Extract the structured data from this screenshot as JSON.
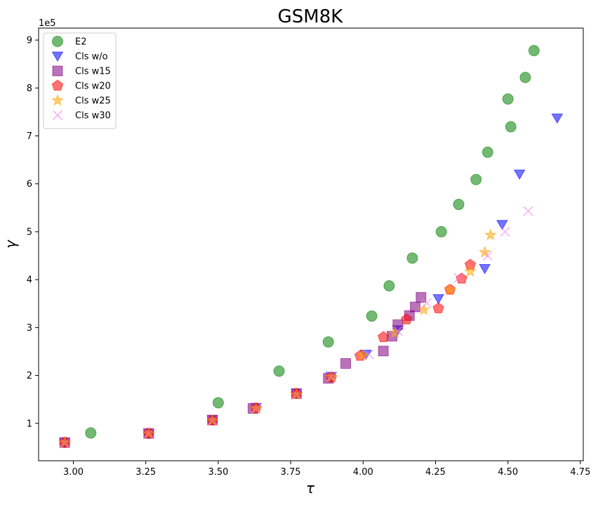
{
  "chart_data": {
    "type": "scatter",
    "title": "GSM8K",
    "xlabel": "τ",
    "ylabel": "γ",
    "y_offset_text": "1e5",
    "xlim": [
      2.88,
      4.76
    ],
    "ylim": [
      0.22,
      9.25
    ],
    "x_ticks": [
      3.0,
      3.25,
      3.5,
      3.75,
      4.0,
      4.25,
      4.5,
      4.75
    ],
    "x_tick_labels": [
      "3.00",
      "3.25",
      "3.50",
      "3.75",
      "4.00",
      "4.25",
      "4.50",
      "4.75"
    ],
    "y_ticks": [
      1,
      2,
      3,
      4,
      5,
      6,
      7,
      8,
      9
    ],
    "y_tick_labels": [
      "1",
      "2",
      "3",
      "4",
      "5",
      "6",
      "7",
      "8",
      "9"
    ],
    "grid": false,
    "legend_position": "top-left",
    "series": [
      {
        "name": "E2",
        "marker": "circle",
        "color": "#008000",
        "points": [
          [
            3.06,
            0.8
          ],
          [
            3.5,
            1.43
          ],
          [
            3.71,
            2.09
          ],
          [
            3.88,
            2.7
          ],
          [
            4.03,
            3.24
          ],
          [
            4.09,
            3.87
          ],
          [
            4.17,
            4.45
          ],
          [
            4.27,
            5.0
          ],
          [
            4.33,
            5.57
          ],
          [
            4.39,
            6.09
          ],
          [
            4.43,
            6.66
          ],
          [
            4.5,
            7.77
          ],
          [
            4.51,
            7.19
          ],
          [
            4.56,
            8.22
          ],
          [
            4.59,
            8.78
          ]
        ]
      },
      {
        "name": "Cls w/o",
        "marker": "triangle-down",
        "color": "#0000ff",
        "points": [
          [
            2.97,
            0.6
          ],
          [
            3.26,
            0.79
          ],
          [
            3.48,
            1.07
          ],
          [
            3.63,
            1.33
          ],
          [
            3.77,
            1.63
          ],
          [
            3.89,
            1.98
          ],
          [
            4.01,
            2.44
          ],
          [
            4.12,
            2.95
          ],
          [
            4.26,
            3.6
          ],
          [
            4.42,
            4.23
          ],
          [
            4.48,
            5.15
          ],
          [
            4.54,
            6.2
          ],
          [
            4.67,
            7.37
          ]
        ]
      },
      {
        "name": "Cls w15",
        "marker": "square",
        "color": "#800080",
        "points": [
          [
            2.97,
            0.6
          ],
          [
            3.26,
            0.79
          ],
          [
            3.48,
            1.07
          ],
          [
            3.62,
            1.31
          ],
          [
            3.77,
            1.62
          ],
          [
            3.88,
            1.94
          ],
          [
            3.94,
            2.25
          ],
          [
            4.07,
            2.51
          ],
          [
            4.1,
            2.82
          ],
          [
            4.12,
            3.06
          ],
          [
            4.16,
            3.25
          ],
          [
            4.18,
            3.43
          ],
          [
            4.2,
            3.63
          ]
        ]
      },
      {
        "name": "Cls w20",
        "marker": "pentagon",
        "color": "#ff0000",
        "points": [
          [
            2.97,
            0.6
          ],
          [
            3.26,
            0.79
          ],
          [
            3.48,
            1.06
          ],
          [
            3.63,
            1.32
          ],
          [
            3.77,
            1.62
          ],
          [
            3.89,
            1.96
          ],
          [
            3.99,
            2.41
          ],
          [
            4.07,
            2.8
          ],
          [
            4.15,
            3.17
          ],
          [
            4.26,
            3.4
          ],
          [
            4.3,
            3.79
          ],
          [
            4.34,
            4.02
          ],
          [
            4.37,
            4.31
          ]
        ]
      },
      {
        "name": "Cls w25",
        "marker": "star",
        "color": "#ffa500",
        "points": [
          [
            2.97,
            0.6
          ],
          [
            3.26,
            0.79
          ],
          [
            3.48,
            1.06
          ],
          [
            3.63,
            1.31
          ],
          [
            3.77,
            1.6
          ],
          [
            3.89,
            1.97
          ],
          [
            4.0,
            2.42
          ],
          [
            4.11,
            2.89
          ],
          [
            4.21,
            3.37
          ],
          [
            4.3,
            3.79
          ],
          [
            4.37,
            4.17
          ],
          [
            4.42,
            4.57
          ],
          [
            4.44,
            4.93
          ]
        ]
      },
      {
        "name": "Cls w30",
        "marker": "x",
        "color": "#ee82ee",
        "points": [
          [
            2.97,
            0.6
          ],
          [
            3.26,
            0.79
          ],
          [
            3.48,
            1.06
          ],
          [
            3.63,
            1.31
          ],
          [
            3.77,
            1.61
          ],
          [
            3.89,
            1.97
          ],
          [
            4.02,
            2.44
          ],
          [
            4.12,
            2.93
          ],
          [
            4.22,
            3.51
          ],
          [
            4.33,
            4.04
          ],
          [
            4.43,
            4.5
          ],
          [
            4.49,
            5.0
          ],
          [
            4.57,
            5.43
          ]
        ]
      }
    ]
  }
}
